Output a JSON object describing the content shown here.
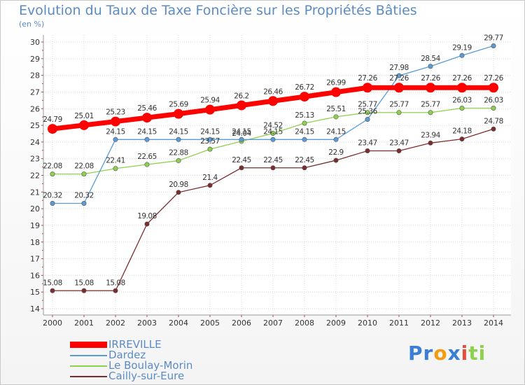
{
  "chart_data": {
    "type": "line",
    "title": "Evolution du Taux de Taxe Foncière sur les Propriétés Bâties",
    "ylabel": "(en %)",
    "xlabel": "",
    "ylim": [
      14,
      30
    ],
    "yticks": [
      "14",
      "15",
      "16",
      "17",
      "18",
      "19",
      "20",
      "21",
      "22",
      "23",
      "24",
      "25",
      "26",
      "27",
      "28",
      "29",
      "30"
    ],
    "categories": [
      "2000",
      "2001",
      "2002",
      "2003",
      "2004",
      "2005",
      "2006",
      "2007",
      "2008",
      "2009",
      "2010",
      "2011",
      "2012",
      "2013",
      "2014"
    ],
    "series": [
      {
        "name": "IRREVILLE",
        "color": "#ff0000",
        "values": [
          24.79,
          25.01,
          25.23,
          25.46,
          25.69,
          25.94,
          26.2,
          26.46,
          26.72,
          26.99,
          27.26,
          27.26,
          27.26,
          27.26,
          27.26
        ],
        "labels": [
          "24.79",
          "25.01",
          "25.23",
          "25.46",
          "25.69",
          "25.94",
          "26.2",
          "26.46",
          "26.72",
          "26.99",
          "27.26",
          "27.26",
          "27.26",
          "27.26",
          "27.26"
        ]
      },
      {
        "name": "Dardez",
        "color": "#5b9bd5",
        "values": [
          20.32,
          20.32,
          24.15,
          24.15,
          24.15,
          24.15,
          24.15,
          24.15,
          24.15,
          24.15,
          25.36,
          27.98,
          28.54,
          29.19,
          29.77
        ],
        "labels": [
          "20.32",
          "20.32",
          "24.15",
          "24.15",
          "24.15",
          "24.15",
          "24.15",
          "24.15",
          "24.15",
          "24.15",
          "25.36",
          "27.98",
          "28.54",
          "29.19",
          "29.77"
        ]
      },
      {
        "name": "Le Boulay-Morin",
        "color": "#8ed14f",
        "values": [
          22.08,
          22.08,
          22.41,
          22.65,
          22.88,
          23.57,
          24.04,
          24.52,
          25.13,
          25.51,
          25.77,
          25.77,
          25.77,
          26.03,
          26.03
        ],
        "labels": [
          "22.08",
          "22.08",
          "22.41",
          "22.65",
          "22.88",
          "23.57",
          "24.04",
          "24.52",
          "25.13",
          "25.51",
          "25.77",
          "25.77",
          "25.77",
          "26.03",
          "26.03"
        ]
      },
      {
        "name": "Cailly-sur-Eure",
        "color": "#7b2c2c",
        "values": [
          15.08,
          15.08,
          15.08,
          19.08,
          20.98,
          21.4,
          22.45,
          22.45,
          22.45,
          22.9,
          23.47,
          23.47,
          23.94,
          24.18,
          24.78
        ],
        "labels": [
          "15.08",
          "15.08",
          "15.08",
          "19.08",
          "20.98",
          "21.4",
          "22.45",
          "22.45",
          "22.45",
          "22.9",
          "23.47",
          "23.47",
          "23.94",
          "24.18",
          "24.78"
        ]
      }
    ],
    "legend_position": "bottom-left"
  },
  "logo": {
    "text_parts": [
      "Pr",
      "o",
      "x",
      "i",
      "ti"
    ],
    "colors": [
      "#3a7fd5",
      "#f39c12",
      "#3a7fd5",
      "#e74c3c",
      "#8ed14f"
    ]
  }
}
